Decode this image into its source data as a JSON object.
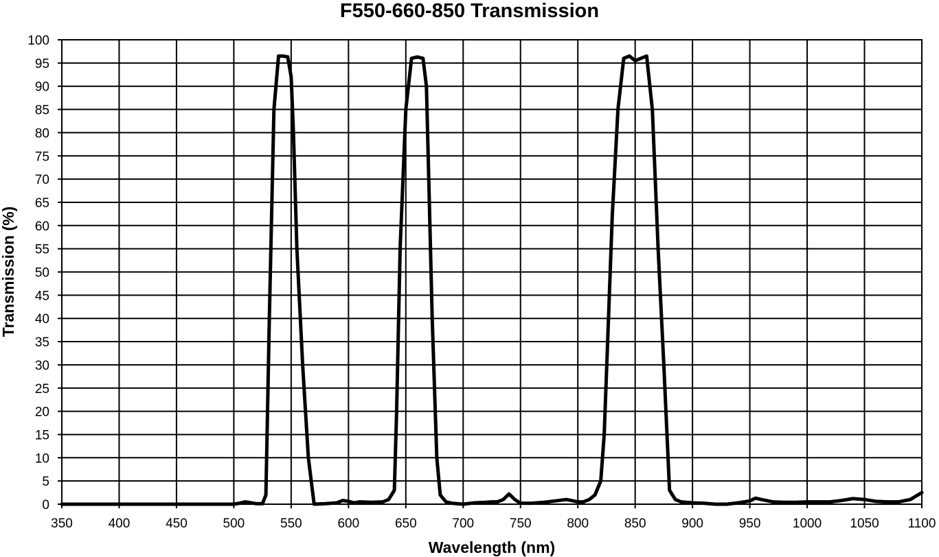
{
  "chart_data": {
    "type": "line",
    "title": "F550-660-850 Transmission",
    "xlabel": "Wavelength (nm)",
    "ylabel": "Transmission (%)",
    "xlim": [
      350,
      1100
    ],
    "ylim": [
      0,
      100
    ],
    "x_ticks": [
      350,
      400,
      450,
      500,
      550,
      600,
      650,
      700,
      750,
      800,
      850,
      900,
      950,
      1000,
      1050,
      1100
    ],
    "y_ticks": [
      0,
      5,
      10,
      15,
      20,
      25,
      30,
      35,
      40,
      45,
      50,
      55,
      60,
      65,
      70,
      75,
      80,
      85,
      90,
      95,
      100
    ],
    "grid": true,
    "legend": "none",
    "line_color": "#000000",
    "series": [
      {
        "x": [
          350,
          400,
          450,
          500,
          505,
          510,
          515,
          520,
          525,
          528,
          531,
          535,
          539,
          543,
          547,
          550,
          552,
          555,
          560,
          565,
          570,
          580,
          590,
          595,
          600,
          605,
          610,
          620,
          630,
          635,
          640,
          642,
          645,
          650,
          655,
          660,
          665,
          668,
          670,
          673,
          677,
          680,
          685,
          690,
          700,
          710,
          720,
          725,
          730,
          735,
          740,
          745,
          750,
          760,
          770,
          780,
          790,
          800,
          805,
          810,
          815,
          820,
          823,
          826,
          830,
          835,
          840,
          845,
          850,
          855,
          860,
          865,
          870,
          875,
          880,
          885,
          890,
          900,
          910,
          920,
          930,
          940,
          950,
          955,
          960,
          970,
          980,
          990,
          1000,
          1010,
          1020,
          1030,
          1040,
          1050,
          1060,
          1070,
          1080,
          1090,
          1100
        ],
        "y": [
          0,
          0,
          0,
          0,
          0.2,
          0.5,
          0.3,
          0.1,
          0.1,
          2,
          40,
          85,
          96.5,
          96.5,
          96.3,
          92,
          80,
          55,
          30,
          10,
          0,
          0.1,
          0.3,
          0.8,
          0.6,
          0.3,
          0.5,
          0.4,
          0.5,
          1,
          3,
          20,
          55,
          85,
          96,
          96.3,
          96,
          90,
          70,
          40,
          10,
          2,
          0.5,
          0.2,
          0,
          0.3,
          0.4,
          0.5,
          0.5,
          1,
          2.2,
          1,
          0.2,
          0.2,
          0.4,
          0.7,
          1,
          0.5,
          0.5,
          1,
          2,
          5,
          15,
          35,
          62,
          85,
          96,
          96.5,
          95.5,
          96,
          96.5,
          85,
          55,
          30,
          3,
          1,
          0.5,
          0.3,
          0.2,
          0,
          0,
          0.3,
          0.7,
          1.3,
          1,
          0.5,
          0.4,
          0.4,
          0.5,
          0.5,
          0.5,
          0.8,
          1.2,
          1.0,
          0.6,
          0.5,
          0.5,
          1,
          2.5
        ]
      }
    ]
  }
}
